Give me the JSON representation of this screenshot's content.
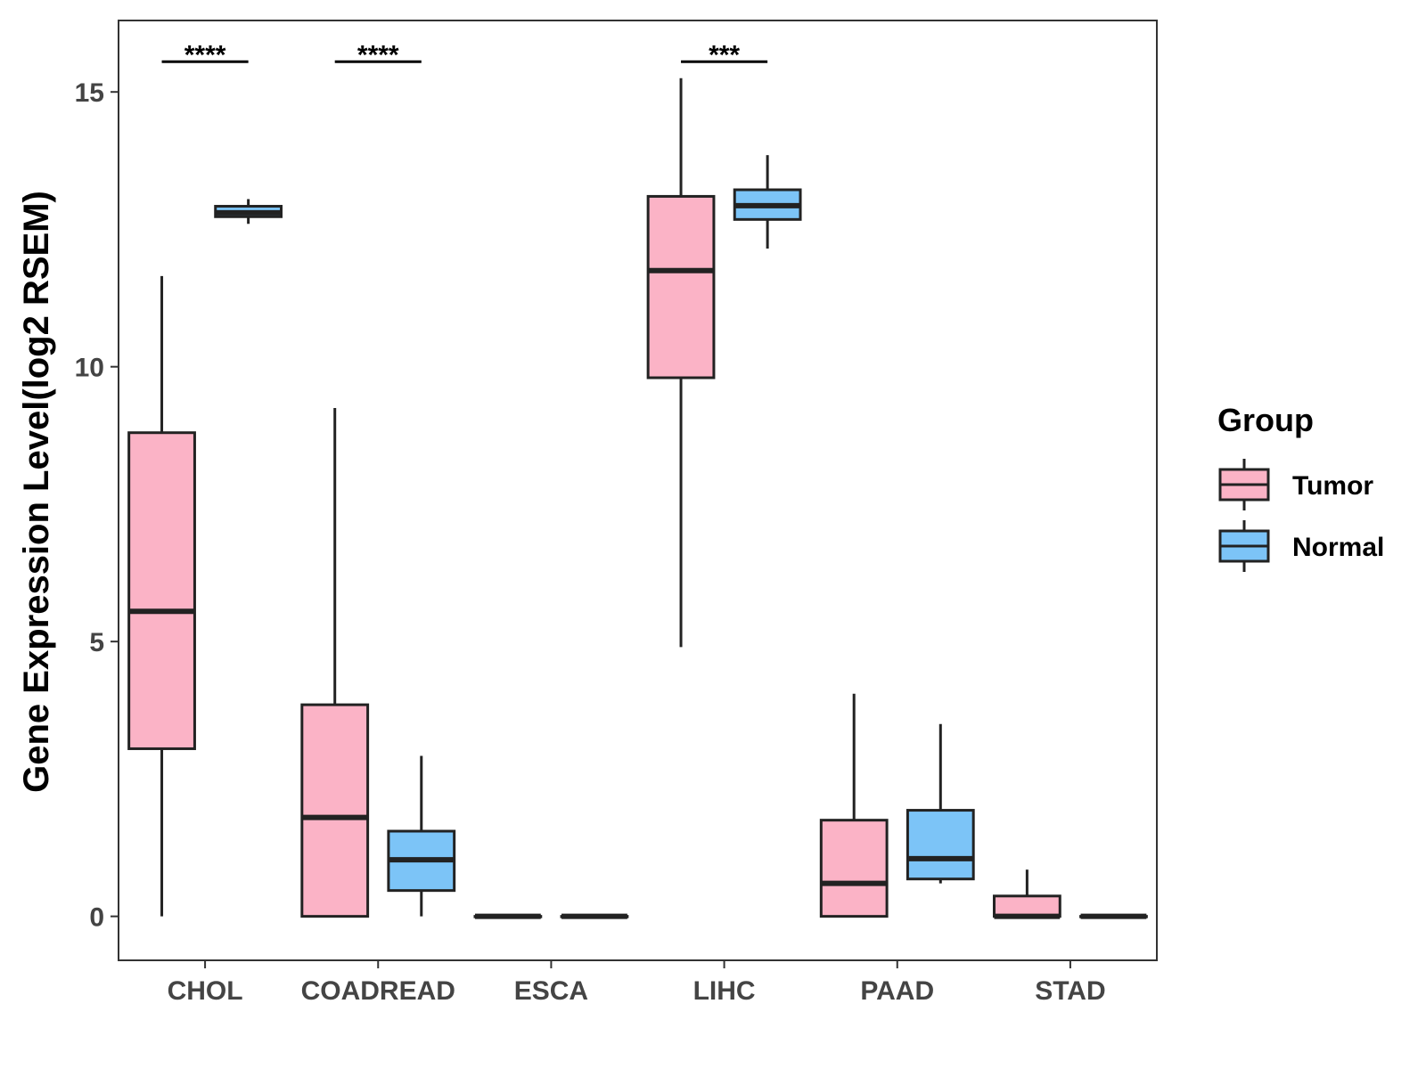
{
  "chart_data": {
    "type": "boxplot",
    "title": "",
    "xlabel": "",
    "ylabel": "Gene Expression Level(log2 RSEM)",
    "ylim": [
      -0.8,
      16.3
    ],
    "yticks": [
      0,
      5,
      10,
      15
    ],
    "grid": false,
    "legend": {
      "title": "Group",
      "position": "right",
      "entries": [
        {
          "name": "Tumor",
          "color": "#FBB3C6"
        },
        {
          "name": "Normal",
          "color": "#7CC4F7"
        }
      ]
    },
    "categories": [
      "CHOL",
      "COADREAD",
      "ESCA",
      "LIHC",
      "PAAD",
      "STAD"
    ],
    "series": [
      {
        "name": "Tumor",
        "color": "#FBB3C6",
        "boxes": [
          {
            "min": 0,
            "q1": 3.05,
            "median": 5.55,
            "q3": 8.8,
            "max": 11.65
          },
          {
            "min": 0,
            "q1": 0,
            "median": 1.8,
            "q3": 3.85,
            "max": 9.25
          },
          {
            "min": 0,
            "q1": 0,
            "median": 0,
            "q3": 0,
            "max": 0
          },
          {
            "min": 4.9,
            "q1": 9.8,
            "median": 11.75,
            "q3": 13.1,
            "max": 15.25
          },
          {
            "min": 0,
            "q1": 0,
            "median": 0.6,
            "q3": 1.75,
            "max": 4.05
          },
          {
            "min": 0,
            "q1": 0,
            "median": 0,
            "q3": 0.37,
            "max": 0.85
          }
        ]
      },
      {
        "name": "Normal",
        "color": "#7CC4F7",
        "boxes": [
          {
            "min": 12.6,
            "q1": 12.73,
            "median": 12.8,
            "q3": 12.92,
            "max": 13.05
          },
          {
            "min": 0,
            "q1": 0.47,
            "median": 1.03,
            "q3": 1.55,
            "max": 2.92
          },
          {
            "min": 0,
            "q1": 0,
            "median": 0,
            "q3": 0,
            "max": 0
          },
          {
            "min": 12.15,
            "q1": 12.68,
            "median": 12.93,
            "q3": 13.22,
            "max": 13.85
          },
          {
            "min": 0.6,
            "q1": 0.68,
            "median": 1.05,
            "q3": 1.93,
            "max": 3.5
          },
          {
            "min": 0,
            "q1": 0,
            "median": 0,
            "q3": 0,
            "max": 0
          }
        ]
      }
    ],
    "annotations": [
      {
        "category": "CHOL",
        "label": "****",
        "y": 15.55
      },
      {
        "category": "COADREAD",
        "label": "****",
        "y": 15.55
      },
      {
        "category": "LIHC",
        "label": "***",
        "y": 15.55
      }
    ]
  }
}
